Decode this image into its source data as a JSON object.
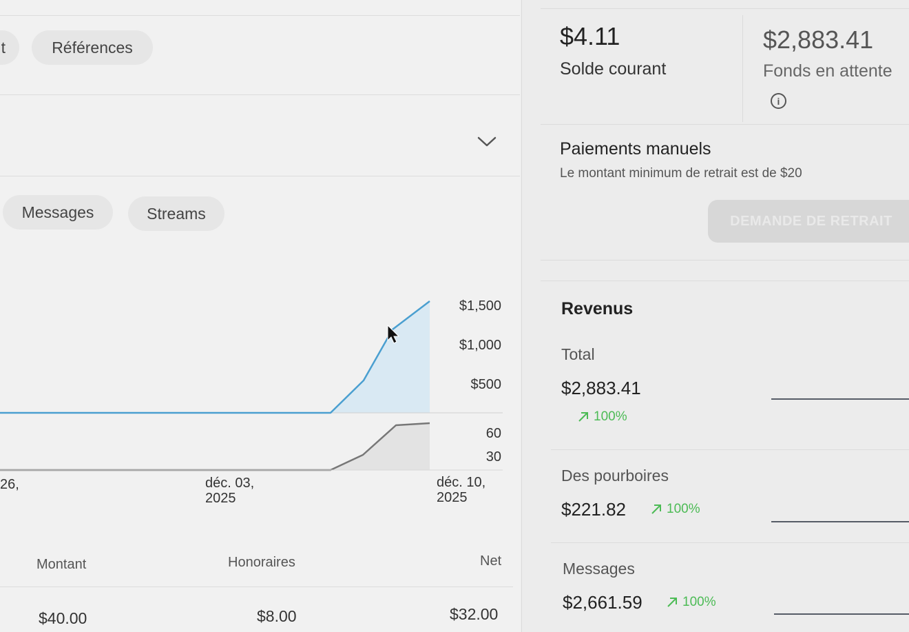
{
  "tabs_top": {
    "partial_label": "t",
    "references_label": "Références"
  },
  "tabs_chart": {
    "messages_label": "Messages",
    "streams_label": "Streams"
  },
  "chart": {
    "upper_ticks": [
      "$1,500",
      "$1,000",
      "$500"
    ],
    "lower_ticks": [
      "60",
      "30"
    ],
    "date_labels": [
      {
        "line1": "26,",
        "line2": ""
      },
      {
        "line1": "déc. 03,",
        "line2": "2025"
      },
      {
        "line1": "déc. 10,",
        "line2": "2025"
      }
    ]
  },
  "table": {
    "headers": {
      "montant": "Montant",
      "honoraires": "Honoraires",
      "net": "Net"
    },
    "row": {
      "montant": "$40.00",
      "honoraires": "$8.00",
      "net": "$32.00"
    }
  },
  "balance": {
    "current_value": "$4.11",
    "current_label": "Solde courant",
    "pending_value": "$2,883.41",
    "pending_label": "Fonds en attente",
    "info_glyph": "i"
  },
  "manual_payments": {
    "title": "Paiements manuels",
    "subtitle": "Le montant minimum de retrait est de $20",
    "button_label": "DEMANDE DE RETRAIT"
  },
  "revenus": {
    "title": "Revenus",
    "items": [
      {
        "label": "Total",
        "value": "$2,883.41",
        "trend": "100%"
      },
      {
        "label": "Des pourboires",
        "value": "$221.82",
        "trend": "100%"
      },
      {
        "label": "Messages",
        "value": "$2,661.59",
        "trend": "100%"
      }
    ]
  },
  "colors": {
    "revenue_line": "#4a9fd0",
    "count_line": "#777777",
    "trend_positive": "#4cbb55"
  },
  "icons": {
    "dropdown": "chevron-down-icon",
    "info": "info-icon",
    "trend": "trend-up-arrow-icon",
    "cursor": "mouse-cursor-icon"
  }
}
